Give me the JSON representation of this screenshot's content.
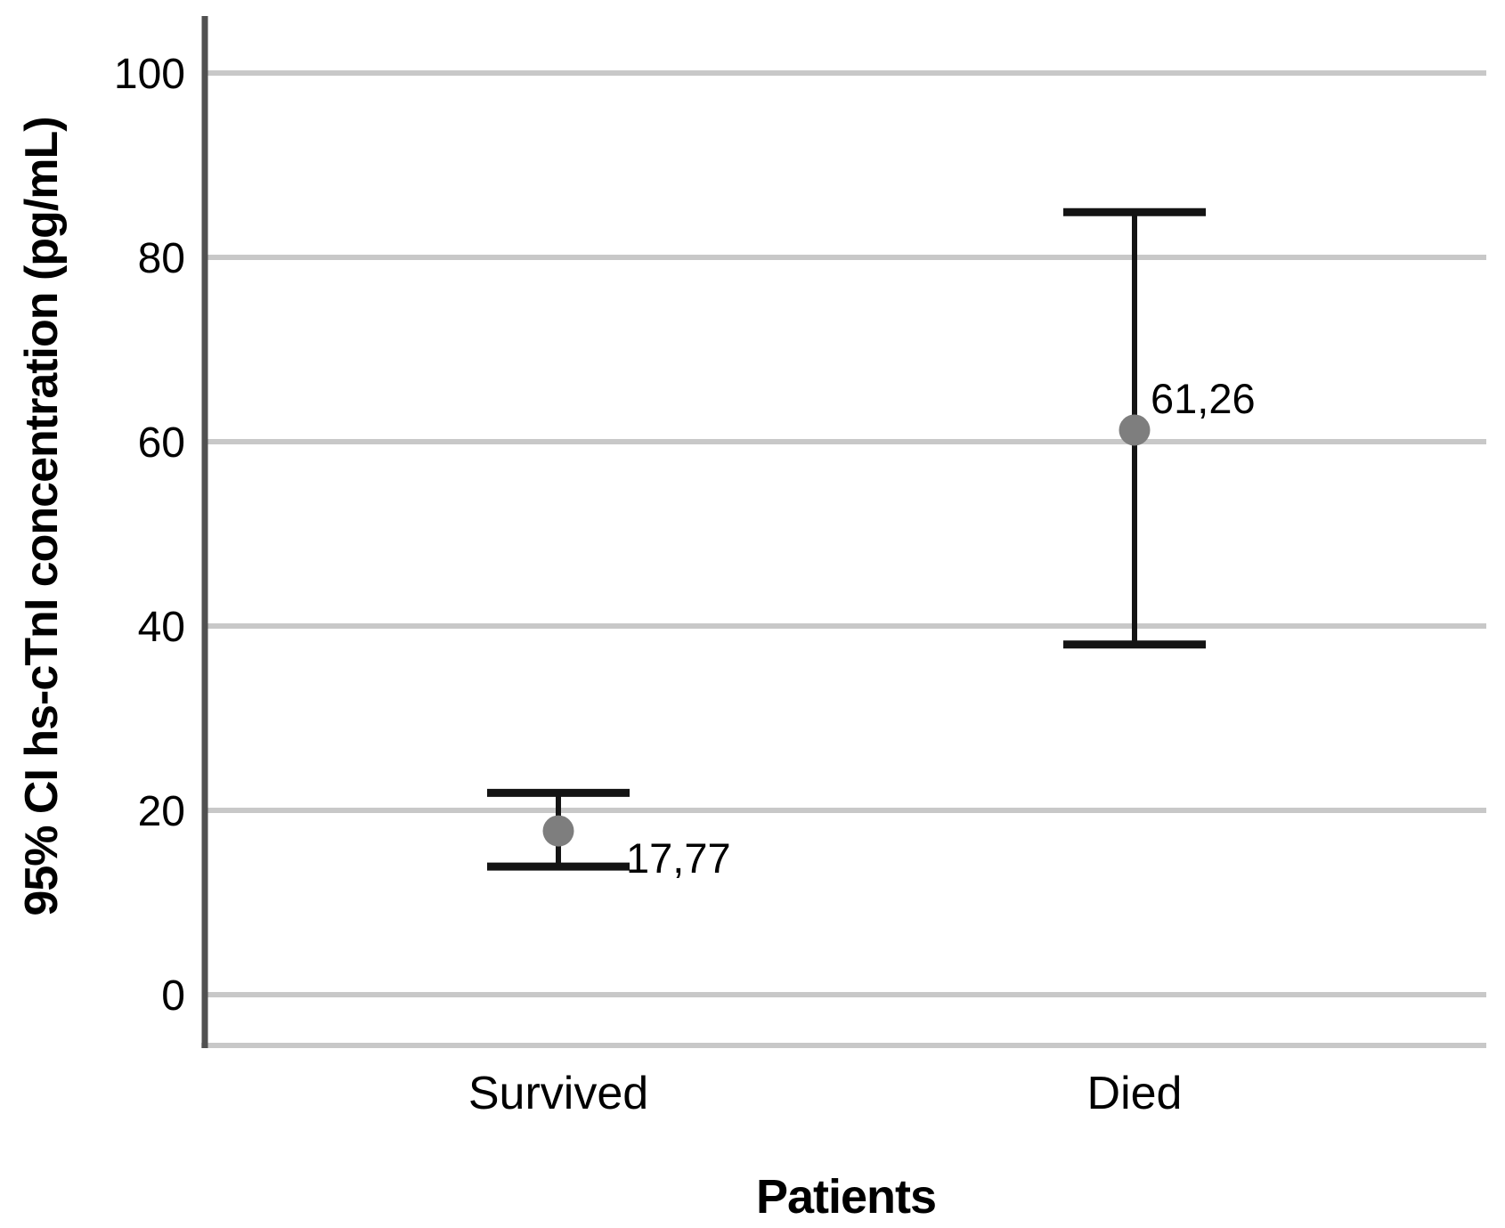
{
  "chart_data": {
    "type": "scatter",
    "variant": "mean-with-95ci-error-bars",
    "title": "",
    "xlabel": "Patients",
    "ylabel": "95% CI hs-cTnI concentration (pg/mL)",
    "categories": [
      "Survived",
      "Died"
    ],
    "points": [
      {
        "category": "Survived",
        "mean": 17.77,
        "value_label": "17,77",
        "ci_lower": 13.9,
        "ci_upper": 21.9
      },
      {
        "category": "Died",
        "mean": 61.26,
        "value_label": "61,26",
        "ci_lower": 38.0,
        "ci_upper": 84.9
      }
    ],
    "yticks": [
      "0",
      "20",
      "40",
      "60",
      "80",
      "100"
    ],
    "ylim": [
      -5.5,
      106
    ],
    "grid": true,
    "legend_position": "none",
    "decimal_separator": ",",
    "colors": {
      "mean_dot": "#7e7e7e",
      "error_bar": "#141414",
      "gridline": "#c8c8c8",
      "baseline": "#c8c8c8",
      "axis_line": "#515151",
      "text": "#000000",
      "background": "#ffffff"
    }
  }
}
